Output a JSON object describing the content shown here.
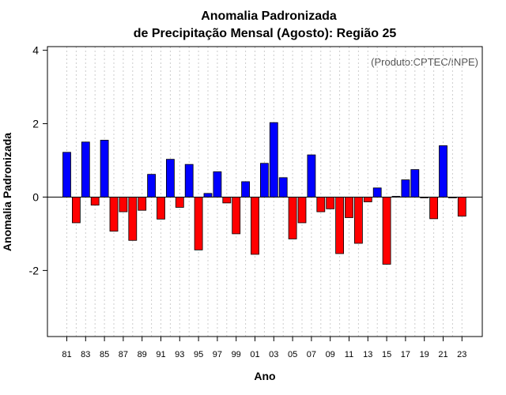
{
  "chart_data": {
    "type": "bar",
    "title": "Anomalia Padronizada",
    "subtitle": "de Precipitação Mensal (Agosto): Região 25",
    "xlabel": "Ano",
    "ylabel": "Anomalia Padronizada",
    "credit": "(Produto:CPTEC/INPE)",
    "ylim": [
      -3.8,
      4.1
    ],
    "yticks": [
      4,
      2,
      0,
      -2
    ],
    "ytick_labels": [
      "4",
      "2",
      "0",
      "-2"
    ],
    "grid": "vertical-dotted",
    "colors": {
      "positive": "#0000ff",
      "negative": "#ff0000",
      "grid": "#cccccc",
      "axis": "#000000"
    },
    "categories": [
      "81",
      "82",
      "83",
      "84",
      "85",
      "86",
      "87",
      "88",
      "89",
      "90",
      "91",
      "92",
      "93",
      "94",
      "95",
      "96",
      "97",
      "98",
      "99",
      "00",
      "01",
      "02",
      "03",
      "04",
      "05",
      "06",
      "07",
      "08",
      "09",
      "10",
      "11",
      "12",
      "13",
      "14",
      "15",
      "16",
      "17",
      "18",
      "19",
      "20",
      "21",
      "22",
      "23"
    ],
    "xtick_labels": [
      "81",
      "83",
      "85",
      "87",
      "89",
      "91",
      "93",
      "95",
      "97",
      "99",
      "01",
      "03",
      "05",
      "07",
      "09",
      "11",
      "13",
      "15",
      "17",
      "19",
      "21",
      "23"
    ],
    "values": [
      1.22,
      -0.7,
      1.5,
      -0.22,
      1.55,
      -0.93,
      -0.4,
      -1.18,
      -0.36,
      0.62,
      -0.6,
      1.03,
      -0.28,
      0.89,
      -1.44,
      0.1,
      0.69,
      -0.16,
      -1.0,
      0.42,
      -1.56,
      0.92,
      2.03,
      0.53,
      -1.14,
      -0.7,
      1.15,
      -0.4,
      -0.32,
      -1.54,
      -0.56,
      -1.26,
      -0.13,
      0.25,
      -1.83,
      0.02,
      0.47,
      0.75,
      -0.02,
      -0.59,
      1.4,
      -0.01,
      -0.52
    ]
  }
}
